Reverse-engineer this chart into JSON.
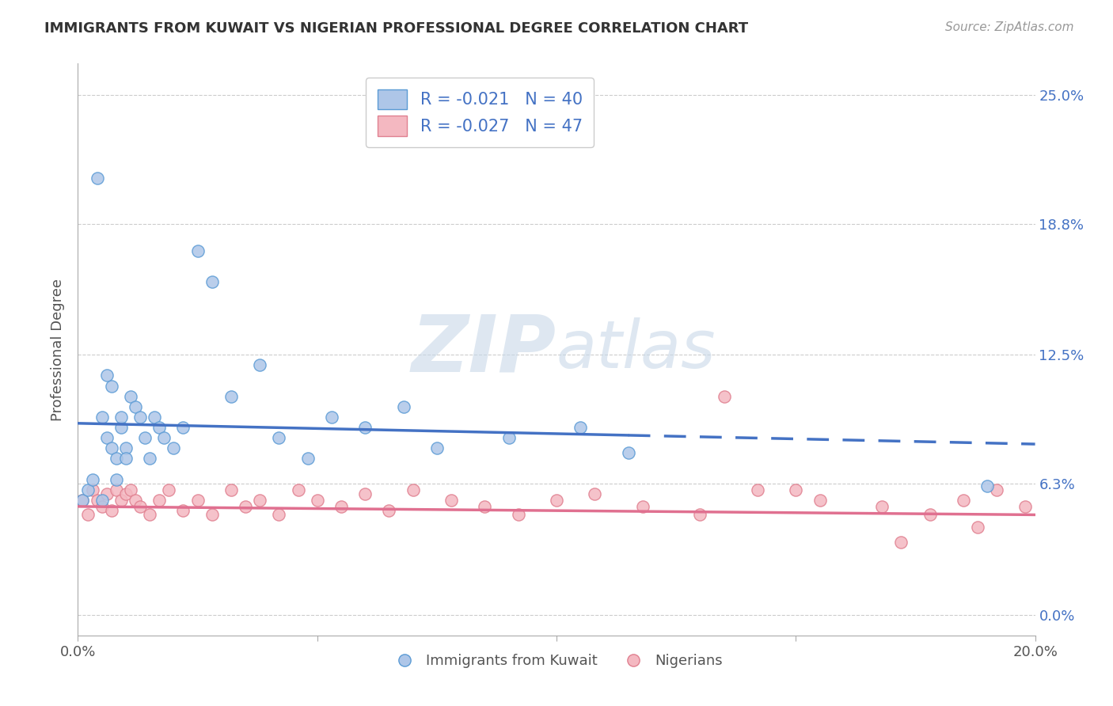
{
  "title": "IMMIGRANTS FROM KUWAIT VS NIGERIAN PROFESSIONAL DEGREE CORRELATION CHART",
  "source": "Source: ZipAtlas.com",
  "ylabel": "Professional Degree",
  "xlim": [
    0.0,
    0.2
  ],
  "ylim": [
    -0.01,
    0.265
  ],
  "y_tick_positions": [
    0.0,
    0.063,
    0.125,
    0.188,
    0.25
  ],
  "y_tick_labels_right": [
    "0.0%",
    "6.3%",
    "12.5%",
    "18.8%",
    "25.0%"
  ],
  "legend_label1": "R = -0.021   N = 40",
  "legend_label2": "R = -0.027   N = 47",
  "legend_sublabel1": "Immigrants from Kuwait",
  "legend_sublabel2": "Nigerians",
  "watermark_zip": "ZIP",
  "watermark_atlas": "atlas",
  "kuwait_color": "#aec6e8",
  "kuwait_edge": "#5b9bd5",
  "nigeria_color": "#f4b8c1",
  "nigeria_edge": "#e08090",
  "kuwait_line_color": "#4472c4",
  "nigeria_line_color": "#e07090",
  "kuwait_scatter_x": [
    0.001,
    0.002,
    0.003,
    0.004,
    0.005,
    0.005,
    0.006,
    0.006,
    0.007,
    0.007,
    0.008,
    0.008,
    0.009,
    0.009,
    0.01,
    0.01,
    0.011,
    0.012,
    0.013,
    0.014,
    0.015,
    0.016,
    0.017,
    0.018,
    0.02,
    0.022,
    0.025,
    0.028,
    0.032,
    0.038,
    0.042,
    0.048,
    0.053,
    0.06,
    0.068,
    0.075,
    0.09,
    0.105,
    0.115,
    0.19
  ],
  "kuwait_scatter_y": [
    0.055,
    0.06,
    0.065,
    0.21,
    0.055,
    0.095,
    0.085,
    0.115,
    0.08,
    0.11,
    0.065,
    0.075,
    0.09,
    0.095,
    0.08,
    0.075,
    0.105,
    0.1,
    0.095,
    0.085,
    0.075,
    0.095,
    0.09,
    0.085,
    0.08,
    0.09,
    0.175,
    0.16,
    0.105,
    0.12,
    0.085,
    0.075,
    0.095,
    0.09,
    0.1,
    0.08,
    0.085,
    0.09,
    0.078,
    0.062
  ],
  "nigeria_scatter_x": [
    0.001,
    0.002,
    0.003,
    0.004,
    0.005,
    0.006,
    0.007,
    0.008,
    0.009,
    0.01,
    0.011,
    0.012,
    0.013,
    0.015,
    0.017,
    0.019,
    0.022,
    0.025,
    0.028,
    0.032,
    0.035,
    0.038,
    0.042,
    0.046,
    0.05,
    0.055,
    0.06,
    0.065,
    0.07,
    0.078,
    0.085,
    0.092,
    0.1,
    0.108,
    0.118,
    0.13,
    0.142,
    0.155,
    0.168,
    0.178,
    0.185,
    0.192,
    0.198,
    0.135,
    0.15,
    0.172,
    0.188
  ],
  "nigeria_scatter_y": [
    0.055,
    0.048,
    0.06,
    0.055,
    0.052,
    0.058,
    0.05,
    0.06,
    0.055,
    0.058,
    0.06,
    0.055,
    0.052,
    0.048,
    0.055,
    0.06,
    0.05,
    0.055,
    0.048,
    0.06,
    0.052,
    0.055,
    0.048,
    0.06,
    0.055,
    0.052,
    0.058,
    0.05,
    0.06,
    0.055,
    0.052,
    0.048,
    0.055,
    0.058,
    0.052,
    0.048,
    0.06,
    0.055,
    0.052,
    0.048,
    0.055,
    0.06,
    0.052,
    0.105,
    0.06,
    0.035,
    0.042
  ],
  "kuwait_line_y_start": 0.092,
  "kuwait_line_y_end": 0.082,
  "nigeria_line_y_start": 0.052,
  "nigeria_line_y_end": 0.048
}
